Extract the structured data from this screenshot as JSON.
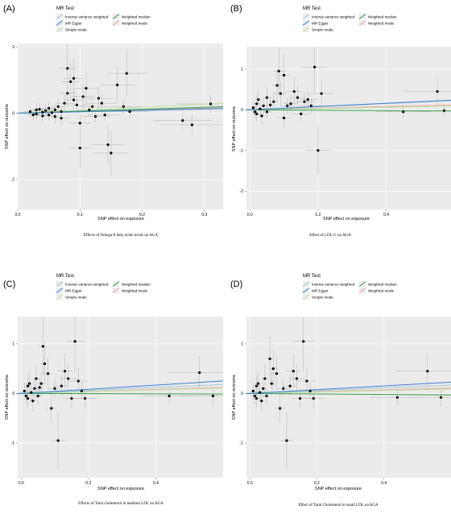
{
  "colors": {
    "panel_bg": "#ebebeb",
    "grid": "#ffffff",
    "point": "#000000",
    "errorbar": "#b3b3b3",
    "ivw": "#a3c9d8",
    "mr_egger": "#3d7fd6",
    "simple_mode": "#bfe3a0",
    "weighted_median": "#2e9e3f",
    "weighted_mode": "#f0a3a0"
  },
  "legend": {
    "title": "MR Test",
    "entries": [
      {
        "key": "ivw",
        "label": "Inverse variance weighted"
      },
      {
        "key": "weighted_median",
        "label": "Weighted median"
      },
      {
        "key": "mr_egger",
        "label": "MR Egger"
      },
      {
        "key": "weighted_mode",
        "label": "Weighted mode"
      },
      {
        "key": "simple_mode",
        "label": "Simple mode"
      }
    ]
  },
  "chart_data": [
    {
      "type": "scatter",
      "panel_label": "(A)",
      "xlabel": "SNP effect on exposure",
      "ylabel": "SNP effect on outcome",
      "caption": "Effects of Omega-6 fatty acids levels on AGA",
      "xlim": [
        0.0,
        0.33
      ],
      "ylim": [
        -2.9,
        2.1
      ],
      "xticks": [
        0.0,
        0.1,
        0.2,
        0.3
      ],
      "xtick_labels": [
        "0.0",
        "0.1",
        "0.2",
        "0.3"
      ],
      "yticks": [
        -2,
        0,
        2
      ],
      "ytick_labels": [
        "-2",
        "0",
        "2"
      ],
      "lines": {
        "ivw": 0.45,
        "mr_egger": 0.42,
        "simple_mode": 0.9,
        "weighted_median": 0.6,
        "weighted_mode": 0.5
      },
      "points": [
        [
          0.02,
          0.05
        ],
        [
          0.025,
          -0.05
        ],
        [
          0.03,
          0.1
        ],
        [
          0.03,
          -0.02
        ],
        [
          0.035,
          0.12
        ],
        [
          0.04,
          -0.08
        ],
        [
          0.04,
          0.03
        ],
        [
          0.045,
          0.08
        ],
        [
          0.05,
          -0.05
        ],
        [
          0.05,
          0.15
        ],
        [
          0.055,
          0.02
        ],
        [
          0.06,
          0.1
        ],
        [
          0.06,
          -0.1
        ],
        [
          0.065,
          0.2
        ],
        [
          0.07,
          0.05
        ],
        [
          0.07,
          -0.15
        ],
        [
          0.075,
          0.3
        ],
        [
          0.08,
          1.35
        ],
        [
          0.08,
          0.6
        ],
        [
          0.085,
          0.95
        ],
        [
          0.09,
          1.05
        ],
        [
          0.09,
          0.4
        ],
        [
          0.095,
          0.25
        ],
        [
          0.1,
          -1.05
        ],
        [
          0.1,
          -0.3
        ],
        [
          0.105,
          0.5
        ],
        [
          0.11,
          0.75
        ],
        [
          0.115,
          0.1
        ],
        [
          0.12,
          0.2
        ],
        [
          0.125,
          -0.1
        ],
        [
          0.13,
          0.45
        ],
        [
          0.135,
          0.3
        ],
        [
          0.14,
          -0.05
        ],
        [
          0.145,
          -0.95
        ],
        [
          0.15,
          -1.2
        ],
        [
          0.16,
          0.85
        ],
        [
          0.17,
          0.2
        ],
        [
          0.175,
          1.2
        ],
        [
          0.18,
          0.05
        ],
        [
          0.265,
          -0.22
        ],
        [
          0.28,
          -0.35
        ],
        [
          0.31,
          0.28
        ]
      ]
    },
    {
      "type": "scatter",
      "panel_label": "(B)",
      "xlabel": "SNP effect on exposure",
      "ylabel": "SNP effect on outcome",
      "caption": "Effect of LDL-C on AGA",
      "xlim": [
        -0.01,
        0.59
      ],
      "ylim": [
        -2.45,
        1.55
      ],
      "xticks": [
        0.0,
        0.2,
        0.4
      ],
      "xtick_labels": [
        "0.0",
        "0.2",
        "0.4"
      ],
      "yticks": [
        -2,
        -1,
        0,
        1
      ],
      "ytick_labels": [
        "-2",
        "-1",
        "0",
        "1"
      ],
      "lines": {
        "ivw": 0.38,
        "mr_egger": 0.4,
        "simple_mode": 0.15,
        "weighted_median": -0.05,
        "weighted_mode": 0.2
      },
      "points": [
        [
          0.01,
          0.05
        ],
        [
          0.015,
          -0.05
        ],
        [
          0.02,
          0.15
        ],
        [
          0.02,
          -0.1
        ],
        [
          0.025,
          0.25
        ],
        [
          0.03,
          0.02
        ],
        [
          0.035,
          -0.15
        ],
        [
          0.04,
          0.1
        ],
        [
          0.05,
          0.3
        ],
        [
          0.05,
          -0.05
        ],
        [
          0.06,
          0.12
        ],
        [
          0.07,
          0.2
        ],
        [
          0.08,
          0.6
        ],
        [
          0.085,
          0.95
        ],
        [
          0.09,
          0.4
        ],
        [
          0.1,
          0.85
        ],
        [
          0.1,
          -0.2
        ],
        [
          0.11,
          0.1
        ],
        [
          0.12,
          0.15
        ],
        [
          0.13,
          0.45
        ],
        [
          0.14,
          0.3
        ],
        [
          0.15,
          -0.1
        ],
        [
          0.16,
          0.2
        ],
        [
          0.17,
          0.25
        ],
        [
          0.18,
          0.1
        ],
        [
          0.19,
          1.05
        ],
        [
          0.2,
          -1.0
        ],
        [
          0.21,
          0.4
        ],
        [
          0.45,
          -0.05
        ],
        [
          0.55,
          0.45
        ],
        [
          0.57,
          -0.02
        ]
      ]
    },
    {
      "type": "scatter",
      "panel_label": "(C)",
      "xlabel": "SNP effect on exposure",
      "ylabel": "SNP effect on outcome",
      "caption": "Effects of Total cholesterol in medium LDL on AGA",
      "xlim": [
        -0.01,
        0.6
      ],
      "ylim": [
        -1.7,
        1.55
      ],
      "xticks": [
        0.0,
        0.2,
        0.4
      ],
      "xtick_labels": [
        "0.0",
        "0.2",
        "0.4"
      ],
      "yticks": [
        -1,
        0,
        1
      ],
      "ytick_labels": [
        "-1",
        "0",
        "1"
      ],
      "lines": {
        "ivw": 0.3,
        "mr_egger": 0.42,
        "simple_mode": 0.18,
        "weighted_median": -0.02,
        "weighted_mode": 0.2
      },
      "points": [
        [
          0.01,
          0.05
        ],
        [
          0.015,
          -0.05
        ],
        [
          0.02,
          0.15
        ],
        [
          0.02,
          -0.1
        ],
        [
          0.025,
          0.2
        ],
        [
          0.03,
          0.02
        ],
        [
          0.035,
          -0.15
        ],
        [
          0.04,
          0.1
        ],
        [
          0.045,
          0.3
        ],
        [
          0.05,
          -0.05
        ],
        [
          0.055,
          0.12
        ],
        [
          0.06,
          0.2
        ],
        [
          0.065,
          0.95
        ],
        [
          0.07,
          0.6
        ],
        [
          0.08,
          0.4
        ],
        [
          0.09,
          -0.3
        ],
        [
          0.1,
          0.1
        ],
        [
          0.11,
          -0.95
        ],
        [
          0.12,
          0.15
        ],
        [
          0.13,
          0.45
        ],
        [
          0.14,
          0.3
        ],
        [
          0.15,
          -0.1
        ],
        [
          0.16,
          1.05
        ],
        [
          0.17,
          0.25
        ],
        [
          0.18,
          0.05
        ],
        [
          0.19,
          -0.1
        ],
        [
          0.53,
          0.42
        ],
        [
          0.57,
          -0.05
        ],
        [
          0.44,
          -0.05
        ]
      ]
    },
    {
      "type": "scatter",
      "panel_label": "(D)",
      "xlabel": "SNP effect on exposure",
      "ylabel": "SNP effect on outcome",
      "caption": "Effect of Total Cholesterol in small LDL on AGA",
      "xlim": [
        -0.01,
        0.6
      ],
      "ylim": [
        -1.7,
        1.55
      ],
      "xticks": [
        0.0,
        0.2,
        0.4
      ],
      "xtick_labels": [
        "0.0",
        "0.2",
        "0.4"
      ],
      "yticks": [
        -1,
        0,
        1
      ],
      "ytick_labels": [
        "-1",
        "0",
        "1"
      ],
      "lines": {
        "ivw": 0.28,
        "mr_egger": 0.38,
        "simple_mode": 0.15,
        "weighted_median": -0.05,
        "weighted_mode": 0.18
      },
      "points": [
        [
          0.01,
          0.05
        ],
        [
          0.015,
          -0.05
        ],
        [
          0.02,
          0.15
        ],
        [
          0.02,
          -0.1
        ],
        [
          0.025,
          0.2
        ],
        [
          0.03,
          0.02
        ],
        [
          0.035,
          -0.15
        ],
        [
          0.04,
          0.1
        ],
        [
          0.045,
          0.3
        ],
        [
          0.05,
          -0.05
        ],
        [
          0.06,
          0.7
        ],
        [
          0.065,
          0.2
        ],
        [
          0.07,
          0.5
        ],
        [
          0.08,
          0.4
        ],
        [
          0.09,
          -0.3
        ],
        [
          0.1,
          0.1
        ],
        [
          0.11,
          -0.95
        ],
        [
          0.12,
          0.15
        ],
        [
          0.13,
          0.45
        ],
        [
          0.14,
          0.3
        ],
        [
          0.15,
          -0.1
        ],
        [
          0.16,
          1.05
        ],
        [
          0.17,
          0.25
        ],
        [
          0.18,
          0.05
        ],
        [
          0.19,
          -0.1
        ],
        [
          0.53,
          0.45
        ],
        [
          0.57,
          -0.08
        ],
        [
          0.44,
          -0.08
        ]
      ]
    }
  ]
}
